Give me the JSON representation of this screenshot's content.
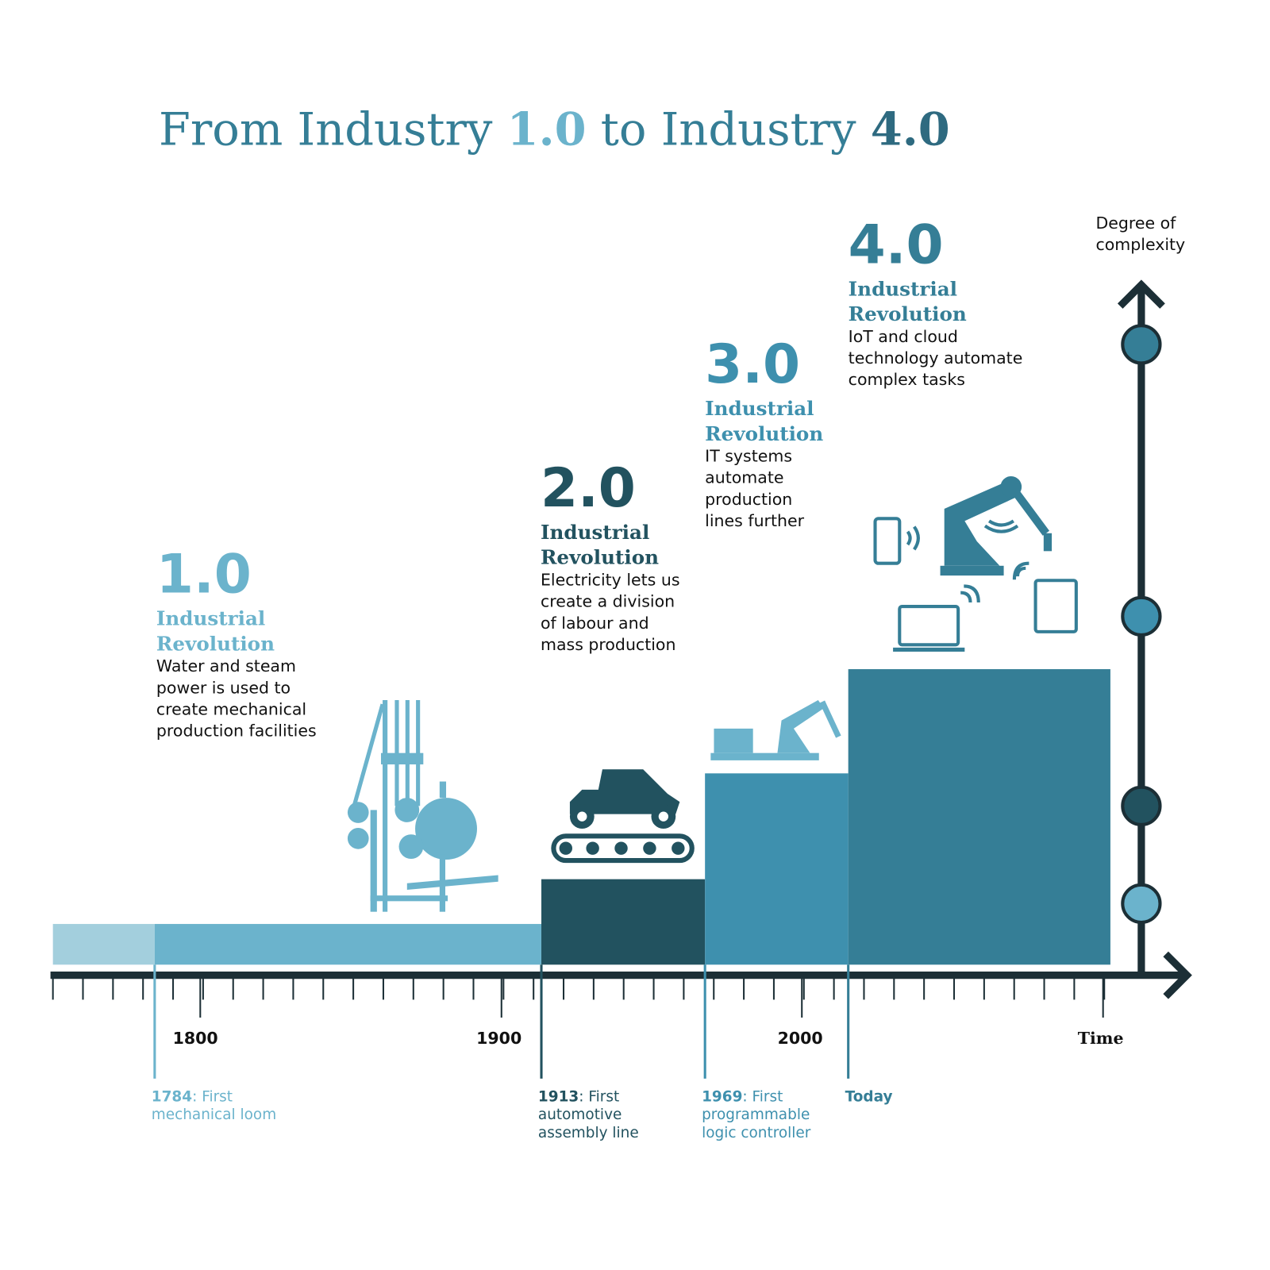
{
  "title": {
    "parts": [
      "From Industry ",
      "1.0",
      " to Industry ",
      "4.0"
    ]
  },
  "stages": [
    {
      "number": "1.0",
      "heading": [
        "Industrial",
        "Revolution"
      ],
      "description": [
        "Water and steam",
        "power is used to",
        "create mechanical",
        "production facilities"
      ]
    },
    {
      "number": "2.0",
      "heading": [
        "Industrial",
        "Revolution"
      ],
      "description": [
        "Electricity lets us",
        "create a division",
        "of labour and",
        "mass production"
      ]
    },
    {
      "number": "3.0",
      "heading": [
        "Industrial",
        "Revolution"
      ],
      "description": [
        "IT systems",
        "automate",
        "production",
        "lines further"
      ]
    },
    {
      "number": "4.0",
      "heading": [
        "Industrial",
        "Revolution"
      ],
      "description": [
        "IoT and cloud",
        "technology automate",
        "complex tasks"
      ]
    }
  ],
  "axis": {
    "x_label": "Time",
    "y_label": [
      "Degree of",
      "complexity"
    ],
    "tick_labels": [
      "1800",
      "1900",
      "2000"
    ]
  },
  "milestones": [
    {
      "year": "1784",
      "lines": [
        ": First",
        "mechanical loom"
      ]
    },
    {
      "year": "1913",
      "lines": [
        ": First",
        "automotive",
        "assembly line"
      ]
    },
    {
      "year": "1969",
      "lines": [
        ": First",
        "programmable",
        "logic controller"
      ]
    },
    {
      "year": "Today",
      "lines": []
    }
  ]
}
